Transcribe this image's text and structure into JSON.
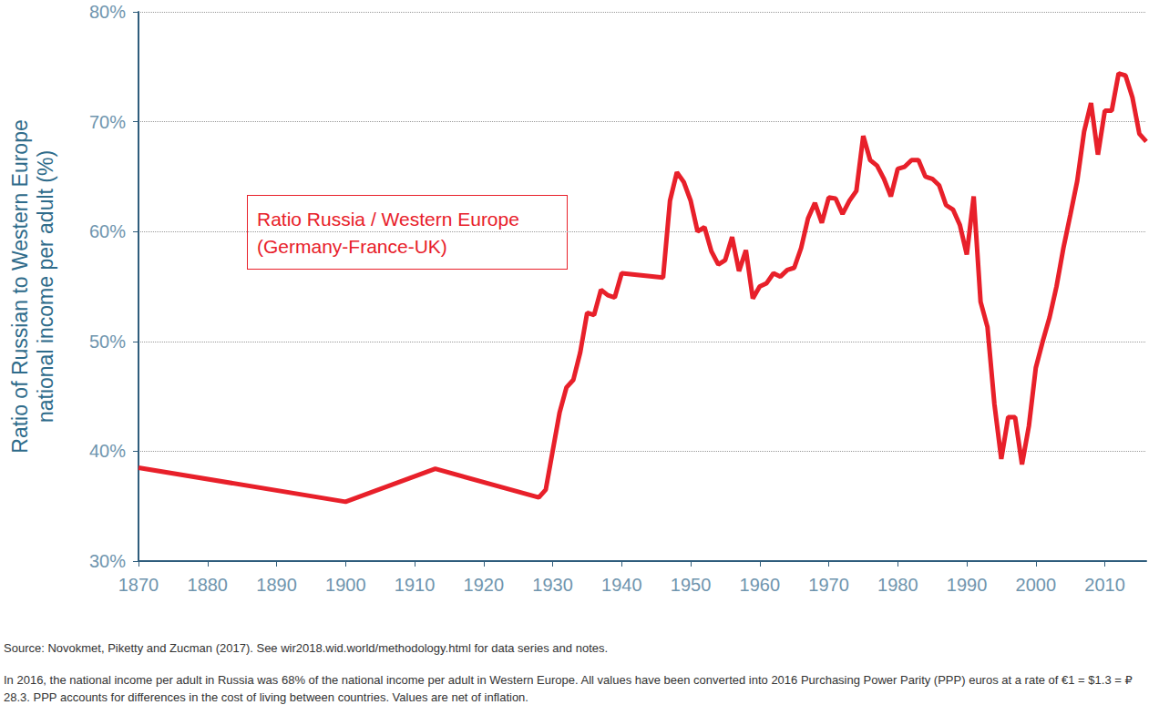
{
  "chart_data": {
    "type": "line",
    "ylabel": "Ratio of Russian to Western Europe\nnational income per adult (%)",
    "annotation": "Ratio Russia / Western Europe\n(Germany-France-UK)",
    "source": "Source: Novokmet, Piketty and Zucman (2017). See wir2018.wid.world/methodology.html for data series and notes.",
    "note": "In 2016, the national income per adult in Russia was 68% of the national income per adult in Western Europe. All values have been converted into 2016 Purchasing Power Parity (PPP) euros at a rate of €1 = $1.3 = ₽28.3. PPP accounts for differences in the cost of living between countries. Values are net of inflation.",
    "x": [
      1870,
      1900,
      1913,
      1928,
      1929,
      1930,
      1931,
      1932,
      1933,
      1934,
      1935,
      1936,
      1937,
      1938,
      1939,
      1940,
      1946,
      1947,
      1948,
      1949,
      1950,
      1951,
      1952,
      1953,
      1954,
      1955,
      1956,
      1957,
      1958,
      1959,
      1960,
      1961,
      1962,
      1963,
      1964,
      1965,
      1966,
      1967,
      1968,
      1969,
      1970,
      1971,
      1972,
      1973,
      1974,
      1975,
      1976,
      1977,
      1978,
      1979,
      1980,
      1981,
      1982,
      1983,
      1984,
      1985,
      1986,
      1987,
      1988,
      1989,
      1990,
      1991,
      1992,
      1993,
      1994,
      1995,
      1996,
      1997,
      1998,
      1999,
      2000,
      2001,
      2002,
      2003,
      2004,
      2005,
      2006,
      2007,
      2008,
      2009,
      2010,
      2011,
      2012,
      2013,
      2014,
      2015,
      2016
    ],
    "values": [
      38.5,
      35.4,
      38.4,
      35.8,
      36.5,
      40,
      43.5,
      45.8,
      46.5,
      49,
      52.6,
      52.4,
      54.7,
      54.2,
      54,
      56.2,
      55.8,
      62.8,
      65.4,
      64.5,
      62.8,
      60,
      60.4,
      58.2,
      57,
      57.4,
      59.5,
      56.4,
      58.3,
      53.9,
      55,
      55.3,
      56.2,
      55.9,
      56.5,
      56.7,
      58.5,
      61.2,
      62.6,
      60.8,
      63.1,
      63,
      61.6,
      62.8,
      63.7,
      68.7,
      66.5,
      66,
      64.8,
      63.2,
      65.7,
      65.9,
      66.5,
      66.5,
      65,
      64.8,
      64.2,
      62.4,
      62,
      60.6,
      57.9,
      63.2,
      53.6,
      51.3,
      44.3,
      39.3,
      43.1,
      43.1,
      38.8,
      42.3,
      47.6,
      50,
      52.2,
      55,
      58.5,
      61.5,
      64.6,
      69.1,
      71.7,
      67,
      71,
      71,
      74.4,
      74.2,
      72.2,
      68.9,
      68.2
    ],
    "color": "#e8202a",
    "xlim": [
      1870,
      2016
    ],
    "xticks": [
      1870,
      1880,
      1890,
      1900,
      1910,
      1920,
      1930,
      1940,
      1950,
      1960,
      1970,
      1980,
      1990,
      2000,
      2010
    ],
    "ylim": [
      30,
      80
    ],
    "yticks": [
      {
        "value": 30,
        "label": "30%"
      },
      {
        "value": 40,
        "label": "40%"
      },
      {
        "value": 50,
        "label": "50%"
      },
      {
        "value": 60,
        "label": "60%"
      },
      {
        "value": 70,
        "label": "70%"
      },
      {
        "value": 80,
        "label": "80%"
      }
    ],
    "grid": true
  }
}
